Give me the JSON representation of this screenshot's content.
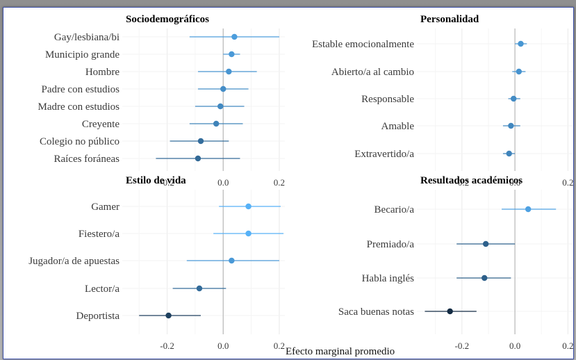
{
  "x_axis_label": "Efecto marginal promedio",
  "chart_data": [
    {
      "type": "scatter",
      "title": "Sociodemográficos",
      "xlim": [
        -0.36,
        0.22
      ],
      "xticks": [
        "-0.2",
        "0.0",
        "0.2"
      ],
      "tick_values": [
        -0.2,
        0.0,
        0.2
      ],
      "categories": [
        "Gay/lesbiana/bi",
        "Municipio grande",
        "Hombre",
        "Padre con estudios",
        "Madre con estudios",
        "Creyente",
        "Colegio no público",
        "Raíces foráneas"
      ],
      "estimate": [
        0.04,
        0.03,
        0.02,
        0.0,
        -0.01,
        -0.025,
        -0.08,
        -0.09
      ],
      "ci_low": [
        -0.12,
        0.0,
        -0.09,
        -0.09,
        -0.1,
        -0.12,
        -0.19,
        -0.24
      ],
      "ci_high": [
        0.2,
        0.06,
        0.12,
        0.09,
        0.075,
        0.07,
        0.02,
        0.06
      ]
    },
    {
      "type": "scatter",
      "title": "Personalidad",
      "xlim": [
        -0.37,
        0.22
      ],
      "xticks": [
        "-0.2",
        "0.0",
        "0.2"
      ],
      "tick_values": [
        -0.2,
        0.0,
        0.2
      ],
      "categories": [
        "Estable emocionalmente",
        "Abierto/a al cambio",
        "Responsable",
        "Amable",
        "Extravertido/a"
      ],
      "estimate": [
        0.022,
        0.015,
        -0.005,
        -0.015,
        -0.022
      ],
      "ci_low": [
        0.0,
        -0.01,
        -0.025,
        -0.045,
        -0.045
      ],
      "ci_high": [
        0.045,
        0.04,
        0.02,
        0.02,
        0.0
      ]
    },
    {
      "type": "scatter",
      "title": "Estilo de vida",
      "xlim": [
        -0.36,
        0.22
      ],
      "xticks": [
        "-0.2",
        "0.0",
        "0.2"
      ],
      "tick_values": [
        -0.2,
        0.0,
        0.2
      ],
      "categories": [
        "Gamer",
        "Fiestero/a",
        "Jugador/a de apuestas",
        "Lector/a",
        "Deportista"
      ],
      "estimate": [
        0.09,
        0.09,
        0.03,
        -0.085,
        -0.195
      ],
      "ci_low": [
        -0.015,
        -0.035,
        -0.13,
        -0.18,
        -0.3
      ],
      "ci_high": [
        0.205,
        0.215,
        0.2,
        0.01,
        -0.08
      ]
    },
    {
      "type": "scatter",
      "title": "Resultados académicos",
      "xlim": [
        -0.37,
        0.22
      ],
      "xticks": [
        "-0.2",
        "0.0",
        "0.2"
      ],
      "tick_values": [
        -0.2,
        0.0,
        0.2
      ],
      "categories": [
        "Becario/a",
        "Premiado/a",
        "Habla inglés",
        "Saca buenas notas"
      ],
      "estimate": [
        0.05,
        -0.11,
        -0.115,
        -0.245
      ],
      "ci_low": [
        -0.05,
        -0.22,
        -0.22,
        -0.34
      ],
      "ci_high": [
        0.155,
        0.0,
        -0.015,
        -0.145
      ]
    }
  ],
  "colors": {
    "light": "#56B1F7",
    "dark": "#132B43",
    "grid": "#ebebeb",
    "zero": "#bdbdbd"
  }
}
